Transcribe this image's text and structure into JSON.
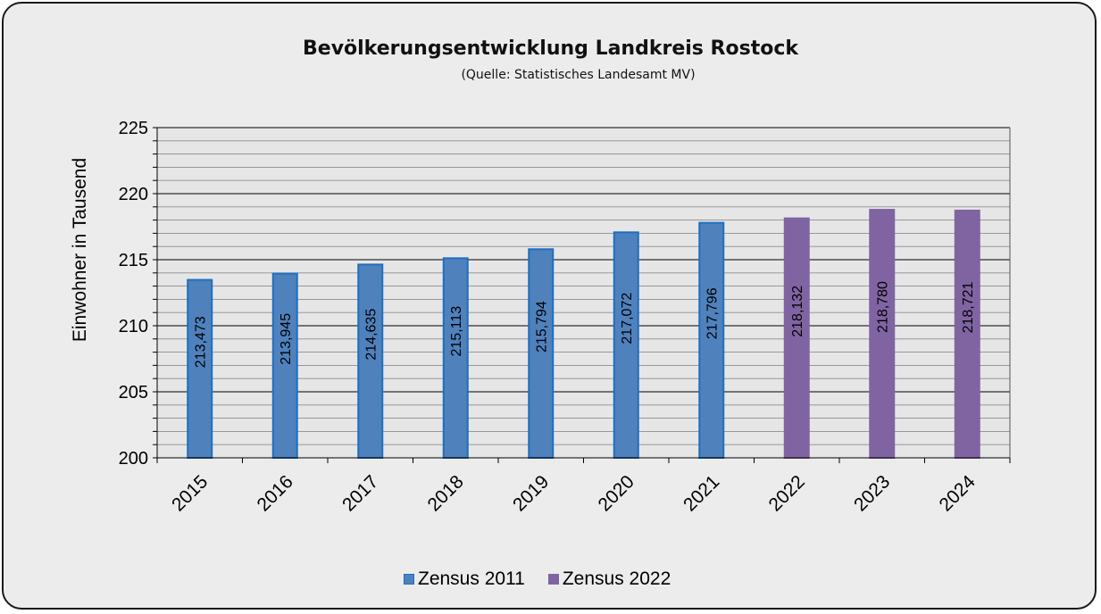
{
  "chart_data": {
    "type": "bar",
    "title": "Bevölkerungsentwicklung Landkreis Rostock",
    "subtitle": "(Quelle: Statistisches Landesamt MV)",
    "xlabel": "",
    "ylabel": "Einwohner in Tausend",
    "ylim": [
      200,
      225
    ],
    "yticks": [
      "200",
      "205",
      "210",
      "215",
      "220",
      "225"
    ],
    "grid": true,
    "legend_position": "bottom",
    "categories": [
      "2015",
      "2016",
      "2017",
      "2018",
      "2019",
      "2020",
      "2021",
      "2022",
      "2023",
      "2024"
    ],
    "values": [
      213.473,
      213.945,
      214.635,
      215.113,
      215.794,
      217.072,
      217.796,
      218.132,
      218.78,
      218.721
    ],
    "value_labels": [
      "213,473",
      "213,945",
      "214,635",
      "215,113",
      "215,794",
      "217,072",
      "217,796",
      "218,132",
      "218,780",
      "218,721"
    ],
    "bar_series": [
      "Zensus 2011",
      "Zensus 2011",
      "Zensus 2011",
      "Zensus 2011",
      "Zensus 2011",
      "Zensus 2011",
      "Zensus 2011",
      "Zensus 2022",
      "Zensus 2022",
      "Zensus 2022"
    ],
    "series": [
      {
        "name": "Zensus 2011",
        "color": "#4f81bd",
        "border": "#1f6fbf"
      },
      {
        "name": "Zensus 2022",
        "color": "#8064a2",
        "border": "#8064a2"
      }
    ]
  }
}
